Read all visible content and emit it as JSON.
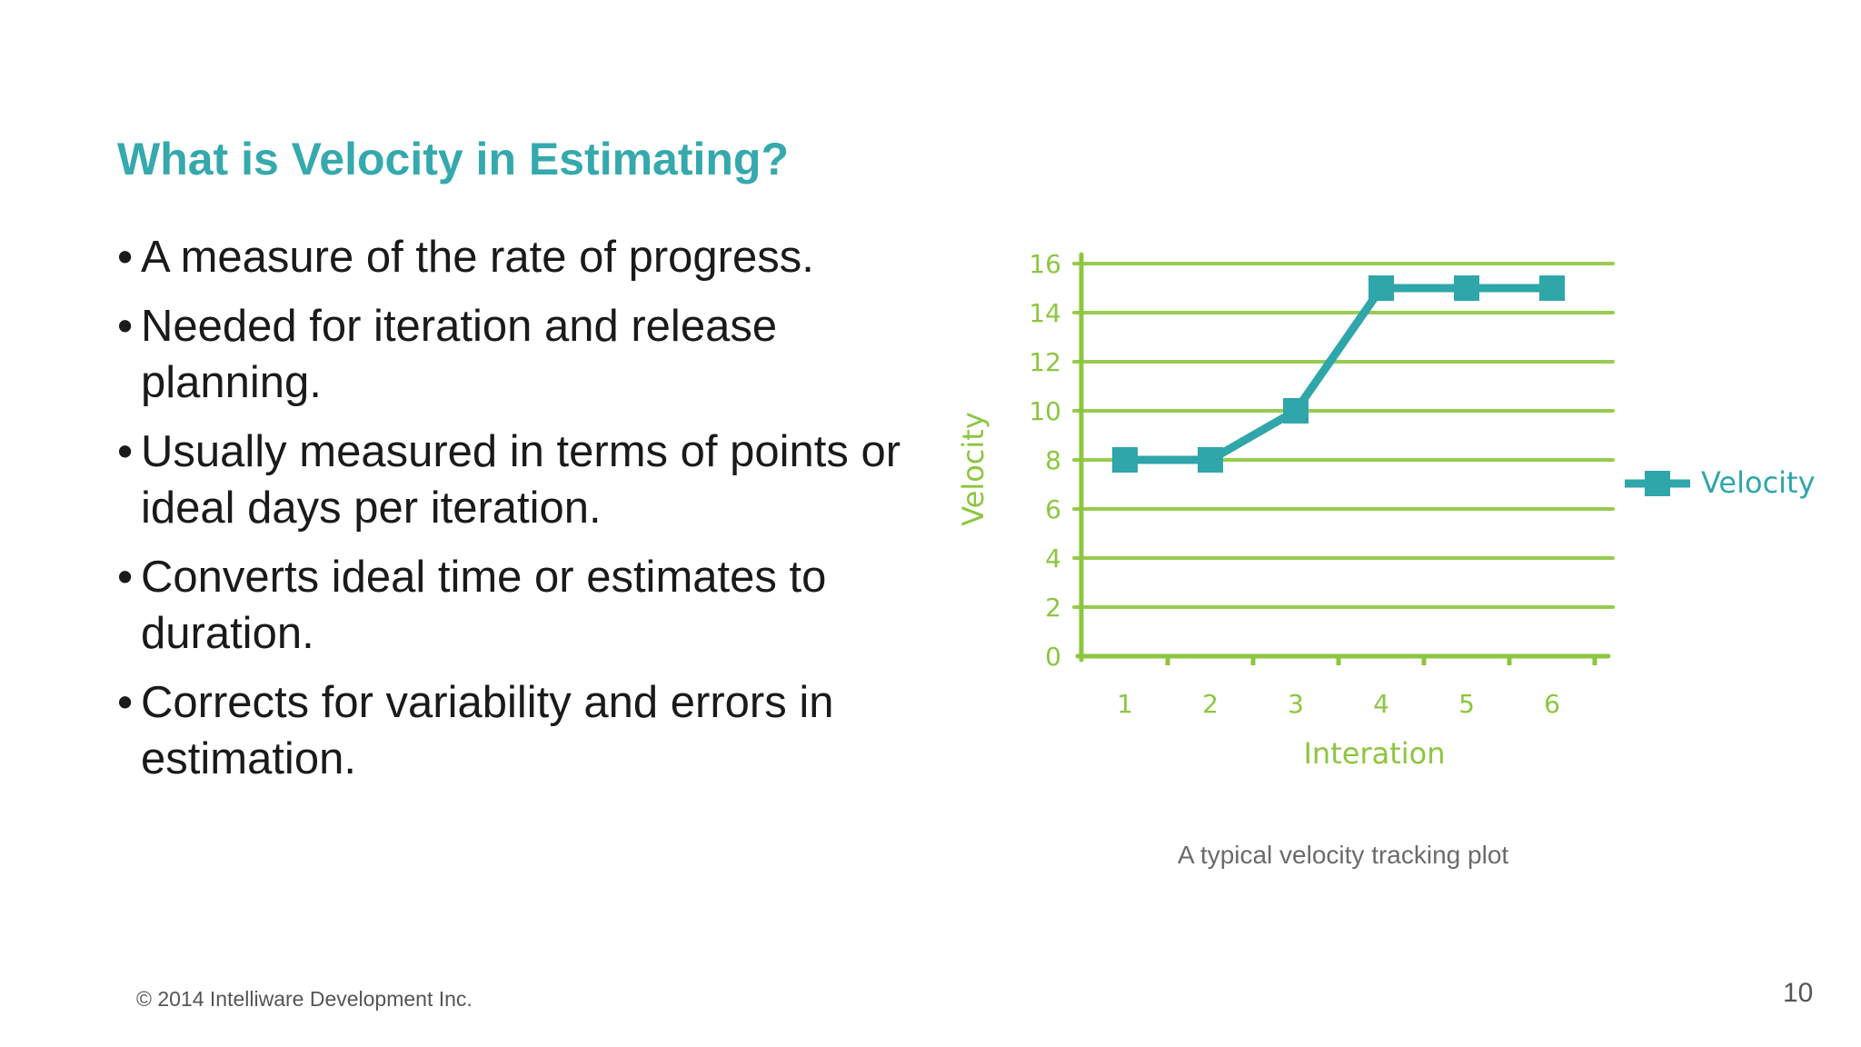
{
  "slide": {
    "title": "What is Velocity in Estimating?",
    "bullets": [
      "A measure of the rate of progress.",
      "Needed for iteration and release planning.",
      "Usually measured in terms of points or ideal days per iteration.",
      "Converts ideal time or estimates to duration.",
      "Corrects for variability and errors in estimation."
    ],
    "caption": "A typical velocity tracking plot",
    "footer": "© 2014 Intelliware Development Inc.",
    "page_number": "10"
  },
  "colors": {
    "title": "#35a9ad",
    "axis_green": "#8cc63f",
    "series_teal": "#2fa6aa"
  },
  "chart_data": {
    "type": "line",
    "x": [
      1,
      2,
      3,
      4,
      5,
      6
    ],
    "series": [
      {
        "name": "Velocity",
        "values": [
          8,
          8,
          10,
          15,
          15,
          15
        ]
      }
    ],
    "xlabel": "Interation",
    "ylabel": "Velocity",
    "ylim": [
      0,
      16
    ],
    "yticks": [
      0,
      2,
      4,
      6,
      8,
      10,
      12,
      14,
      16
    ],
    "xticks": [
      1,
      2,
      3,
      4,
      5,
      6
    ],
    "grid": true,
    "legend": "right"
  }
}
